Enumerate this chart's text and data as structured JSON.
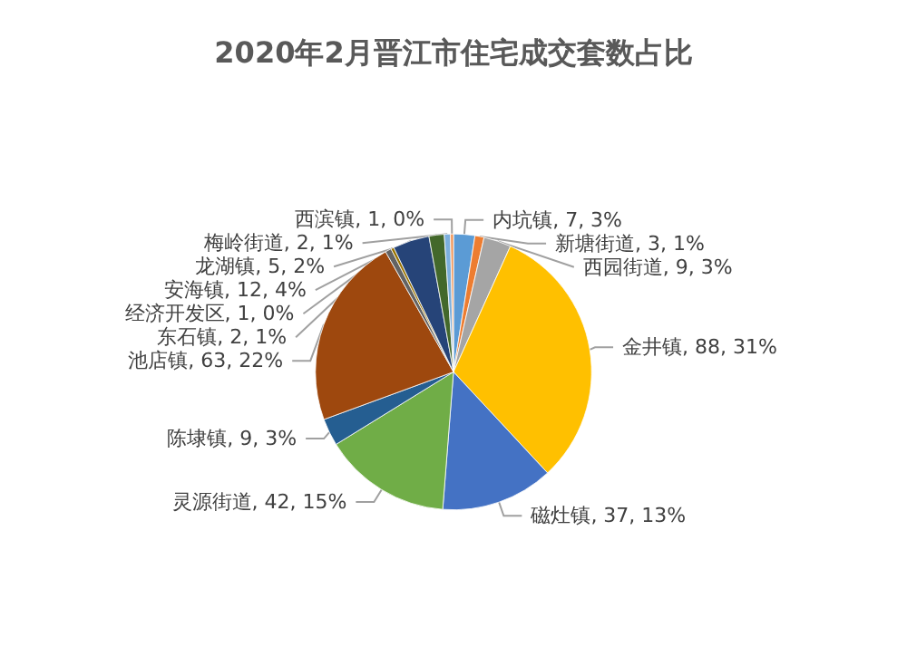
{
  "chart_data": {
    "type": "pie",
    "title": "2020年2月晋江市住宅成交套数占比",
    "categories": [
      "内坑镇",
      "新塘街道",
      "西园街道",
      "金井镇",
      "磁灶镇",
      "灵源街道",
      "陈埭镇",
      "池店镇",
      "东石镇",
      "经济开发区",
      "安海镇",
      "龙湖镇",
      "梅岭街道",
      "西滨镇"
    ],
    "values": [
      7,
      3,
      9,
      88,
      37,
      42,
      9,
      63,
      2,
      1,
      12,
      5,
      2,
      1
    ],
    "value_labels": [
      "7, 3%",
      "3, 1%",
      "9, 3%",
      "88, 31%",
      "37, 13%",
      "42, 15%",
      "9, 3%",
      "63, 22%",
      "2, 1%",
      "1, 0%",
      "12, 4%",
      "5, 2%",
      "2, 1%",
      "1, 0%"
    ],
    "colors": [
      "#5b9bd5",
      "#ed7d31",
      "#a5a5a5",
      "#ffc000",
      "#4472c4",
      "#70ad47",
      "#255e91",
      "#9e480e",
      "#636363",
      "#997300",
      "#264478",
      "#43682b",
      "#7cafdd",
      "#f1975a"
    ],
    "legend": false
  }
}
